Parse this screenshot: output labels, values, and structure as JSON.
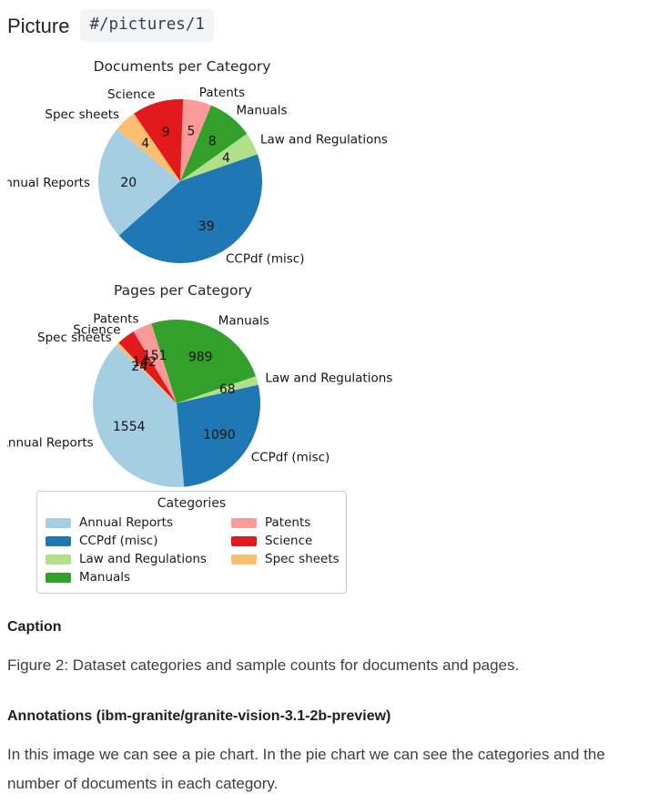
{
  "page": {
    "title": "Picture",
    "path_chip": "#/pictures/1"
  },
  "chart_data": [
    {
      "type": "pie",
      "title": "Documents per Category",
      "categories": [
        "Patents",
        "Manuals",
        "Law and Regulations",
        "CCPdf (misc)",
        "Annual Reports",
        "Spec sheets",
        "Science"
      ],
      "values": [
        5,
        8,
        4,
        39,
        20,
        4,
        9
      ],
      "colors": [
        "#fb9a99",
        "#33a02c",
        "#b2df8a",
        "#1f78b4",
        "#a6cee3",
        "#fdbf6f",
        "#e31a1c"
      ],
      "start_angle_clockwise_from_top_deg": 2,
      "direction": "clockwise",
      "show_values": true
    },
    {
      "type": "pie",
      "title": "Pages per Category",
      "categories": [
        "Patents",
        "Manuals",
        "Law and Regulations",
        "CCPdf (misc)",
        "Annual Reports",
        "Spec sheets",
        "Science"
      ],
      "values": [
        151,
        989,
        68,
        1090,
        1554,
        24,
        142
      ],
      "colors": [
        "#fb9a99",
        "#33a02c",
        "#b2df8a",
        "#1f78b4",
        "#a6cee3",
        "#fdbf6f",
        "#e31a1c"
      ],
      "start_angle_clockwise_from_top_deg": -31,
      "direction": "clockwise",
      "show_values": true
    }
  ],
  "legend": {
    "title": "Categories",
    "entries": [
      {
        "label": "Annual Reports",
        "color": "#a6cee3"
      },
      {
        "label": "CCPdf (misc)",
        "color": "#1f78b4"
      },
      {
        "label": "Law and Regulations",
        "color": "#b2df8a"
      },
      {
        "label": "Manuals",
        "color": "#33a02c"
      },
      {
        "label": "Patents",
        "color": "#fb9a99"
      },
      {
        "label": "Science",
        "color": "#e31a1c"
      },
      {
        "label": "Spec sheets",
        "color": "#fdbf6f"
      }
    ]
  },
  "caption": {
    "heading": "Caption",
    "text": "Figure 2: Dataset categories and sample counts for documents and pages."
  },
  "annotations": {
    "heading": "Annotations (ibm-granite/granite-vision-3.1-2b-preview)",
    "text": "In this image we can see a pie chart. In the pie chart we can see the categories and the number of documents in each category."
  }
}
